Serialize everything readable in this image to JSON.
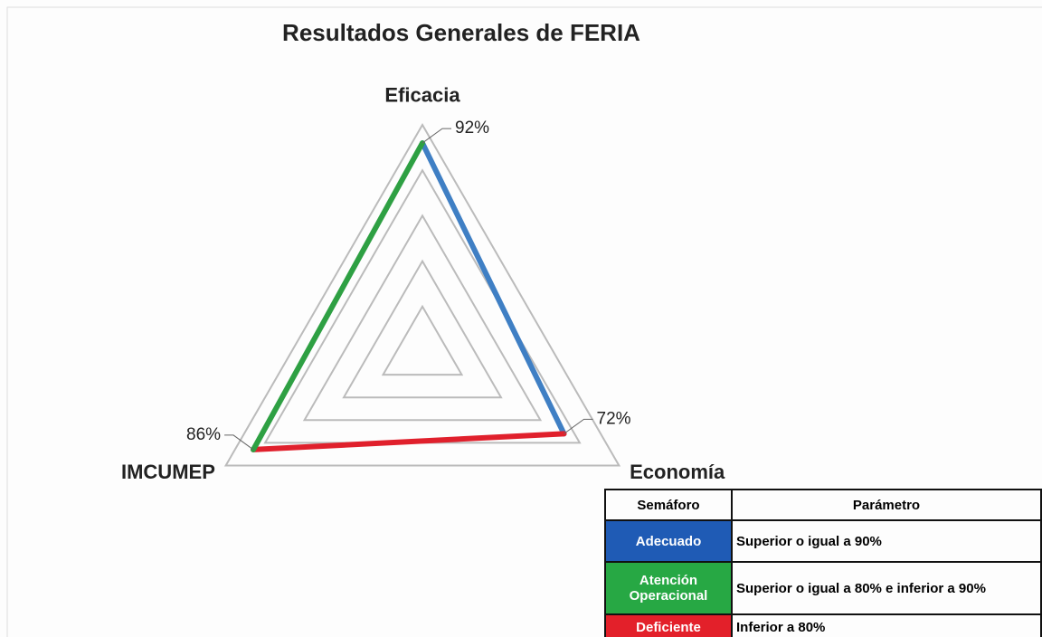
{
  "chart_data": {
    "type": "radar",
    "title": "Resultados Generales de FERIA",
    "categories": [
      "Eficacia",
      "Economía",
      "IMCUMEP"
    ],
    "values": [
      92,
      72,
      86
    ],
    "value_labels": [
      "92%",
      "72%",
      "86%"
    ],
    "segment_colors": [
      "#3f7fc4",
      "#e0202c",
      "#2ea043"
    ],
    "rlim": [
      0,
      100
    ],
    "rticks": [
      20,
      40,
      60,
      80,
      100
    ],
    "grid": true
  },
  "table": {
    "headers": [
      "Semáforo",
      "Parámetro"
    ],
    "rows": [
      [
        "Adecuado",
        "Superior o igual a 90%"
      ],
      [
        "Atención Operacional",
        "Superior o igual a 80% e inferior a 90%"
      ],
      [
        "Deficiente",
        "Inferior a 80%"
      ]
    ],
    "colors": [
      "#1f5bb5",
      "#27a844",
      "#e3202a"
    ]
  }
}
